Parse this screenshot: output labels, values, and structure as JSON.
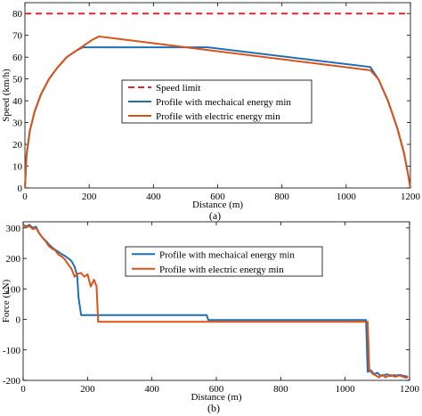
{
  "chart_data": [
    {
      "type": "line",
      "panel_label": "(a)",
      "xlabel": "Distance (m)",
      "ylabel": "Speed (km/h)",
      "xlim": [
        0,
        1200
      ],
      "ylim": [
        0,
        85
      ],
      "xticks": [
        0,
        200,
        400,
        600,
        800,
        1000,
        1200
      ],
      "yticks": [
        0,
        10,
        20,
        30,
        40,
        50,
        60,
        70,
        80
      ],
      "legend_position": "center",
      "series": [
        {
          "name": "Speed limit",
          "color": "#e3242b",
          "style": "dashed",
          "x": [
            0,
            1200
          ],
          "y": [
            80,
            80
          ]
        },
        {
          "name": "Profile with mechaical energy min",
          "color": "#1f6fb5",
          "style": "solid",
          "x": [
            0,
            5,
            15,
            30,
            50,
            75,
            100,
            130,
            160,
            180,
            570,
            1075,
            1100,
            1130,
            1160,
            1180,
            1193,
            1200
          ],
          "y": [
            0,
            15,
            26,
            35,
            43,
            50,
            55,
            60,
            63,
            64.5,
            64.5,
            55.5,
            50,
            40,
            27,
            16,
            6,
            0
          ]
        },
        {
          "name": "Profile with electric energy min",
          "color": "#d95319",
          "style": "solid",
          "x": [
            0,
            5,
            15,
            30,
            50,
            75,
            100,
            130,
            160,
            190,
            210,
            230,
            1075,
            1100,
            1130,
            1160,
            1180,
            1193,
            1200
          ],
          "y": [
            0,
            15,
            26,
            35,
            43,
            50,
            55,
            60,
            63,
            66,
            68,
            69.5,
            54,
            50,
            40,
            27,
            16,
            6,
            0
          ]
        }
      ]
    },
    {
      "type": "line",
      "panel_label": "(b)",
      "xlabel": "Distance (m)",
      "ylabel": "Force (kN)",
      "xlim": [
        0,
        1200
      ],
      "ylim": [
        -200,
        320
      ],
      "xticks": [
        0,
        200,
        400,
        600,
        800,
        1000,
        1200
      ],
      "yticks": [
        300,
        200,
        100,
        0,
        -100,
        -200
      ],
      "legend_position": "upper-center",
      "series": [
        {
          "name": "Profile with mechaical energy min",
          "color": "#1f6fb5",
          "style": "solid",
          "x": [
            0,
            10,
            20,
            30,
            40,
            50,
            60,
            70,
            80,
            90,
            100,
            110,
            120,
            130,
            140,
            150,
            160,
            168,
            172,
            180,
            570,
            575,
            1065,
            1070,
            1080,
            1090,
            1100,
            1110,
            1120,
            1130,
            1140,
            1150,
            1160,
            1170,
            1180,
            1195
          ],
          "y": [
            310,
            305,
            310,
            300,
            304,
            282,
            268,
            258,
            246,
            236,
            228,
            221,
            214,
            208,
            200,
            192,
            172,
            142,
            72,
            14,
            14,
            -2,
            -2,
            -172,
            -167,
            -180,
            -175,
            -185,
            -183,
            -180,
            -186,
            -183,
            -184,
            -182,
            -185,
            -188
          ]
        },
        {
          "name": "Profile with electric energy min",
          "color": "#d95319",
          "style": "solid",
          "x": [
            0,
            10,
            20,
            30,
            40,
            50,
            60,
            70,
            80,
            90,
            100,
            110,
            120,
            130,
            140,
            150,
            160,
            170,
            180,
            190,
            200,
            210,
            220,
            228,
            233,
            1070,
            1075,
            1085,
            1095,
            1105,
            1115,
            1125,
            1140,
            1155,
            1170,
            1185,
            1195
          ],
          "y": [
            310,
            302,
            306,
            296,
            300,
            282,
            268,
            256,
            240,
            232,
            226,
            212,
            206,
            196,
            180,
            166,
            140,
            150,
            152,
            140,
            148,
            108,
            130,
            108,
            -8,
            -8,
            -165,
            -178,
            -184,
            -190,
            -182,
            -190,
            -182,
            -188,
            -184,
            -190,
            -191
          ]
        }
      ]
    }
  ]
}
